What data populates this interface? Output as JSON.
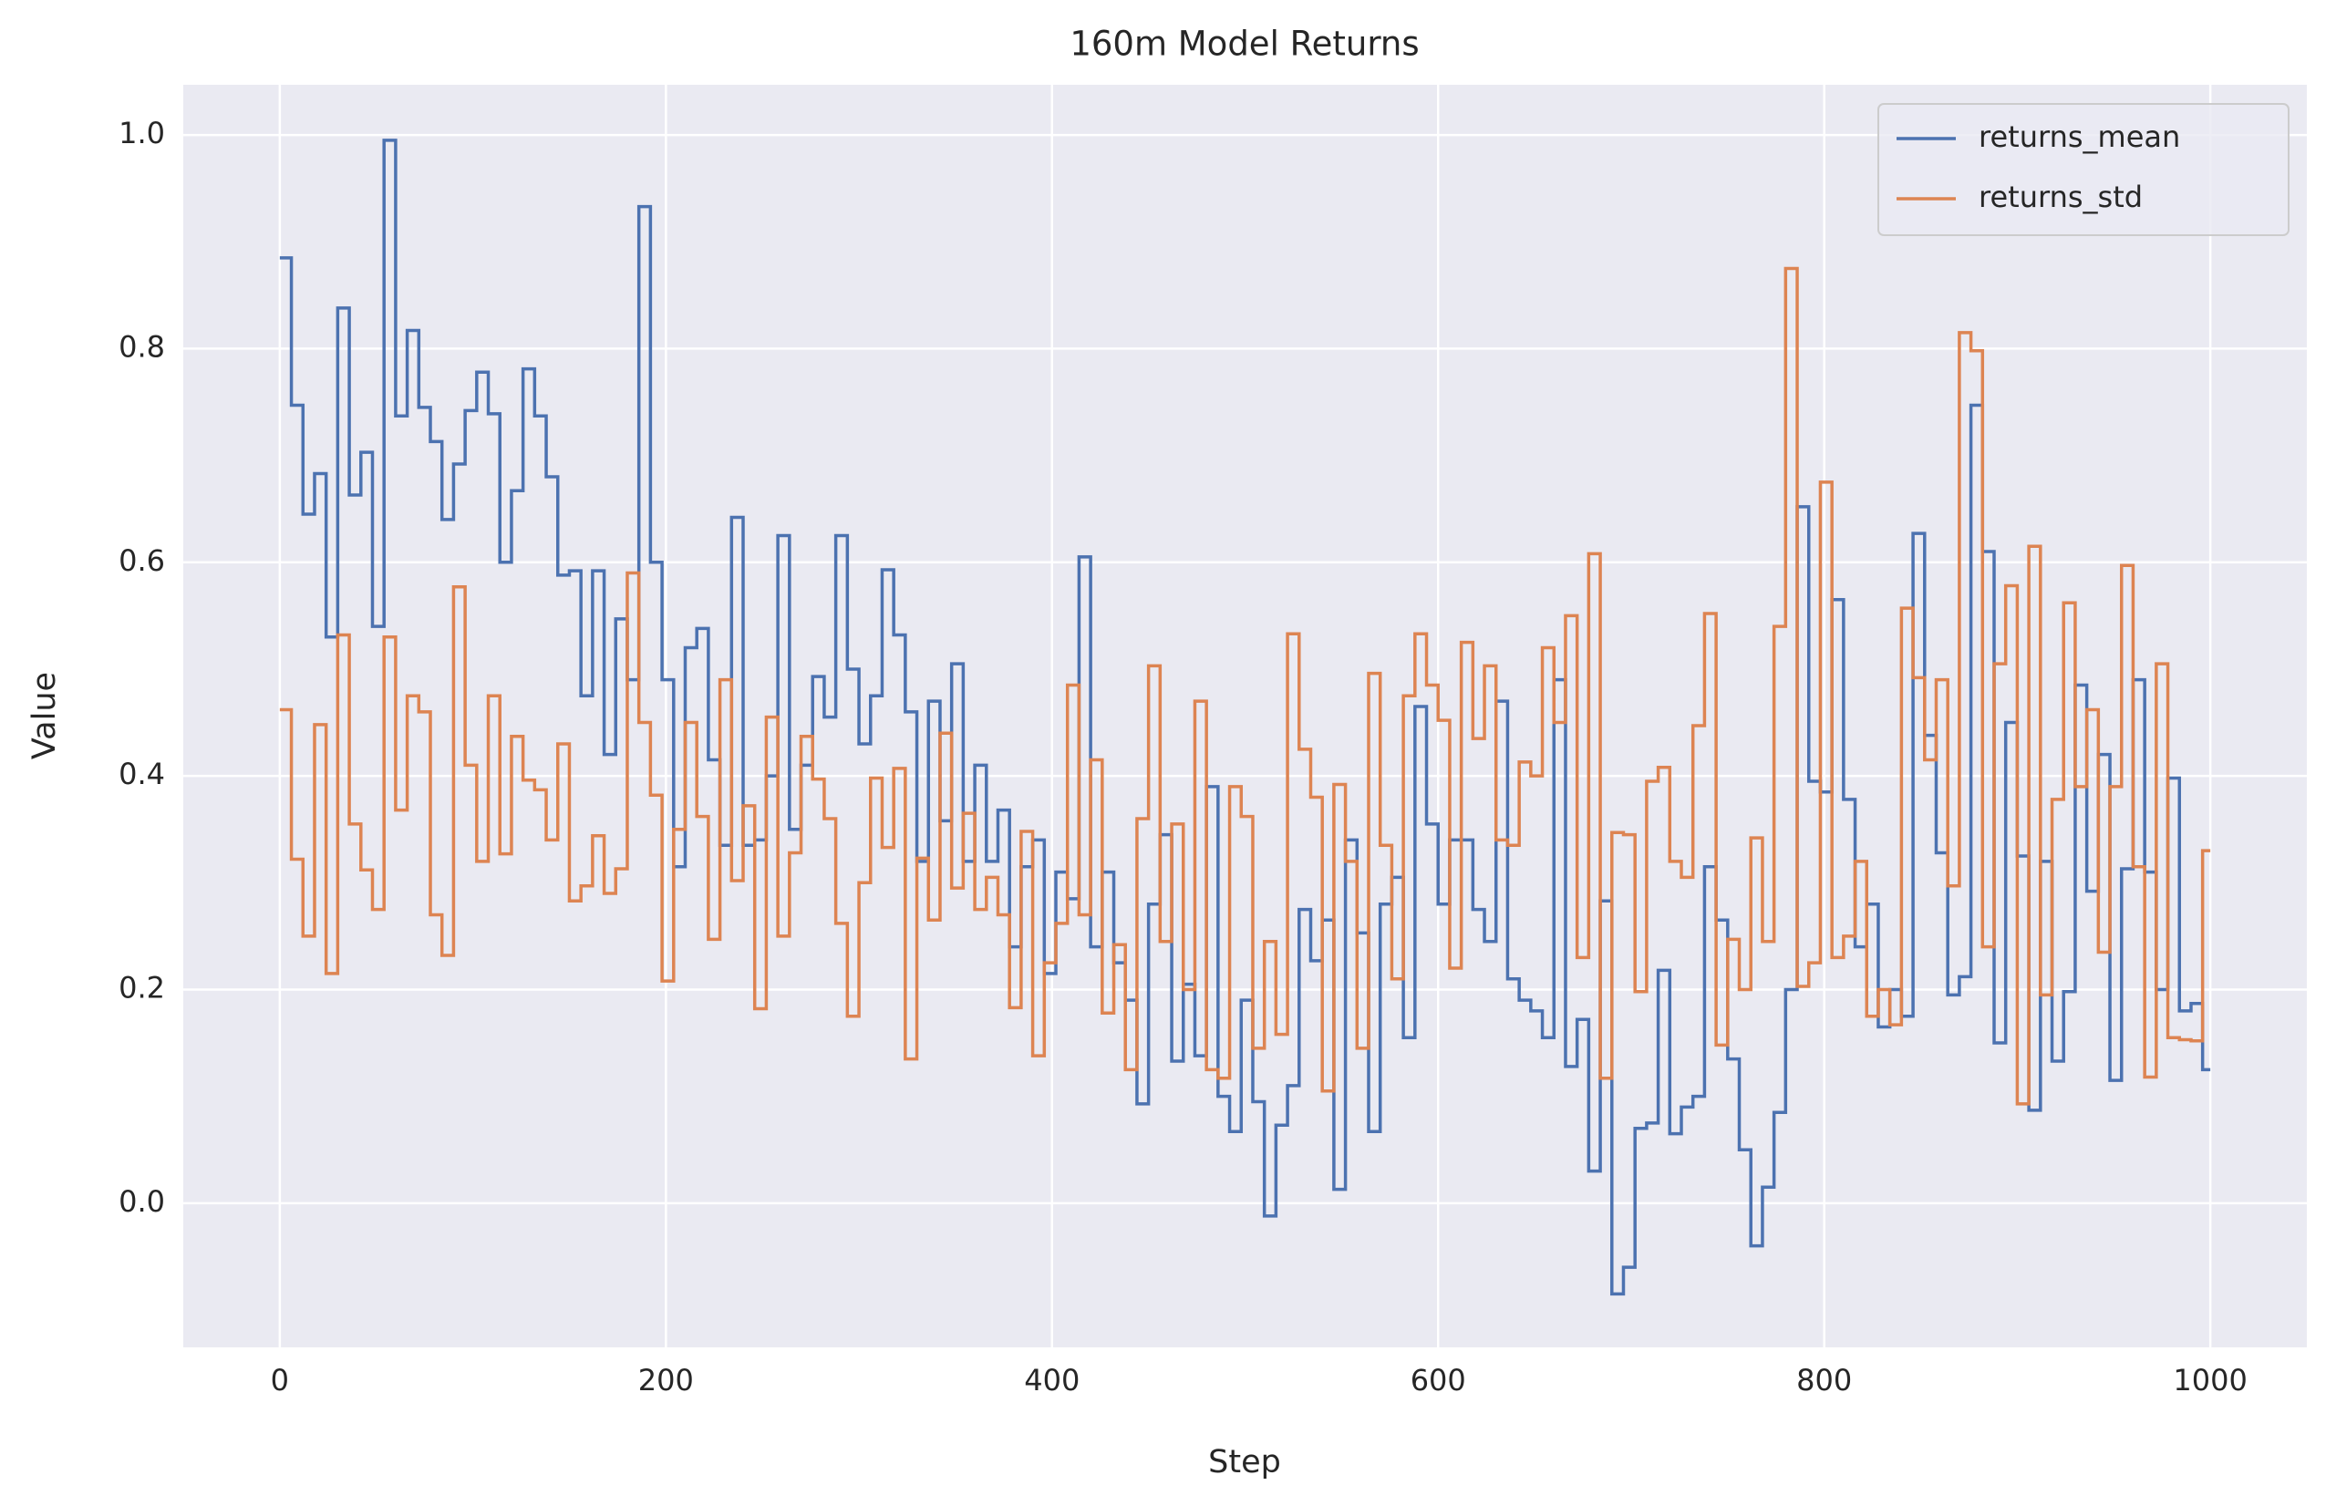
{
  "chart_data": {
    "type": "line",
    "drawstyle": "steps-post",
    "title": "160m Model Returns",
    "x_label": "Step",
    "y_label": "Value",
    "xlim": [
      -50,
      1050
    ],
    "ylim": [
      -0.135,
      1.047
    ],
    "xticks": [
      0,
      200,
      400,
      600,
      800,
      1000
    ],
    "yticks": [
      {
        "value": 0,
        "label": "0.0"
      },
      0.2,
      0.4,
      0.6,
      0.8,
      {
        "value": 1,
        "label": "1.0"
      }
    ],
    "grid": true,
    "legend": "upper right",
    "x": [
      0,
      6,
      12,
      18,
      24,
      30,
      36,
      42,
      48,
      54,
      60,
      66,
      72,
      78,
      84,
      90,
      96,
      102,
      108,
      114,
      120,
      126,
      132,
      138,
      144,
      150,
      156,
      162,
      168,
      174,
      180,
      186,
      192,
      198,
      204,
      210,
      216,
      222,
      228,
      234,
      240,
      246,
      252,
      258,
      264,
      270,
      276,
      282,
      288,
      294,
      300,
      306,
      312,
      318,
      324,
      330,
      336,
      342,
      348,
      354,
      360,
      366,
      372,
      378,
      384,
      390,
      396,
      402,
      408,
      414,
      420,
      426,
      432,
      438,
      444,
      450,
      456,
      462,
      468,
      474,
      480,
      486,
      492,
      498,
      504,
      510,
      516,
      522,
      528,
      534,
      540,
      546,
      552,
      558,
      564,
      570,
      576,
      582,
      588,
      594,
      600,
      606,
      612,
      618,
      624,
      630,
      636,
      642,
      648,
      654,
      660,
      666,
      672,
      678,
      684,
      690,
      696,
      702,
      708,
      714,
      720,
      726,
      732,
      738,
      744,
      750,
      756,
      762,
      768,
      774,
      780,
      786,
      792,
      798,
      804,
      810,
      816,
      822,
      828,
      834,
      840,
      846,
      852,
      858,
      864,
      870,
      876,
      882,
      888,
      894,
      900,
      906,
      912,
      918,
      924,
      930,
      936,
      942,
      948,
      954,
      960,
      966,
      972,
      978,
      984,
      990,
      996,
      1000
    ],
    "series": [
      {
        "name": "returns_mean",
        "color": "#4c72b0",
        "values": [
          0.885,
          0.747,
          0.645,
          0.683,
          0.53,
          0.838,
          0.663,
          0.703,
          0.54,
          0.995,
          0.737,
          0.817,
          0.745,
          0.713,
          0.64,
          0.692,
          0.742,
          0.778,
          0.739,
          0.6,
          0.667,
          0.781,
          0.737,
          0.68,
          0.588,
          0.592,
          0.475,
          0.592,
          0.42,
          0.547,
          0.49,
          0.933,
          0.6,
          0.49,
          0.315,
          0.52,
          0.538,
          0.415,
          0.335,
          0.642,
          0.335,
          0.34,
          0.4,
          0.625,
          0.35,
          0.41,
          0.493,
          0.455,
          0.625,
          0.5,
          0.43,
          0.475,
          0.593,
          0.532,
          0.46,
          0.32,
          0.47,
          0.358,
          0.505,
          0.32,
          0.41,
          0.32,
          0.368,
          0.24,
          0.315,
          0.34,
          0.215,
          0.31,
          0.285,
          0.605,
          0.24,
          0.31,
          0.225,
          0.19,
          0.093,
          0.28,
          0.345,
          0.133,
          0.205,
          0.138,
          0.39,
          0.1,
          0.067,
          0.19,
          0.095,
          -0.012,
          0.073,
          0.11,
          0.275,
          0.227,
          0.265,
          0.013,
          0.34,
          0.253,
          0.067,
          0.28,
          0.305,
          0.155,
          0.465,
          0.355,
          0.28,
          0.34,
          0.34,
          0.275,
          0.245,
          0.47,
          0.21,
          0.19,
          0.18,
          0.155,
          0.49,
          0.128,
          0.172,
          0.03,
          0.283,
          -0.085,
          -0.06,
          0.07,
          0.075,
          0.218,
          0.065,
          0.09,
          0.1,
          0.315,
          0.265,
          0.135,
          0.05,
          -0.04,
          0.015,
          0.085,
          0.2,
          0.652,
          0.395,
          0.385,
          0.565,
          0.378,
          0.24,
          0.28,
          0.165,
          0.2,
          0.175,
          0.627,
          0.438,
          0.328,
          0.195,
          0.212,
          0.747,
          0.61,
          0.15,
          0.45,
          0.325,
          0.087,
          0.32,
          0.133,
          0.198,
          0.485,
          0.292,
          0.42,
          0.115,
          0.313,
          0.49,
          0.31,
          0.2,
          0.398,
          0.18,
          0.187,
          0.125,
          0.125
        ]
      },
      {
        "name": "returns_std",
        "color": "#dd8452",
        "values": [
          0.462,
          0.322,
          0.25,
          0.448,
          0.215,
          0.532,
          0.355,
          0.312,
          0.275,
          0.53,
          0.368,
          0.475,
          0.46,
          0.27,
          0.232,
          0.577,
          0.41,
          0.32,
          0.475,
          0.327,
          0.437,
          0.396,
          0.387,
          0.34,
          0.43,
          0.283,
          0.297,
          0.344,
          0.29,
          0.313,
          0.59,
          0.45,
          0.382,
          0.208,
          0.35,
          0.45,
          0.362,
          0.247,
          0.49,
          0.302,
          0.372,
          0.182,
          0.455,
          0.25,
          0.328,
          0.437,
          0.397,
          0.36,
          0.262,
          0.175,
          0.3,
          0.398,
          0.333,
          0.407,
          0.135,
          0.323,
          0.265,
          0.44,
          0.295,
          0.365,
          0.275,
          0.305,
          0.27,
          0.183,
          0.348,
          0.138,
          0.225,
          0.262,
          0.485,
          0.27,
          0.415,
          0.178,
          0.242,
          0.125,
          0.36,
          0.503,
          0.245,
          0.355,
          0.2,
          0.47,
          0.125,
          0.117,
          0.39,
          0.362,
          0.145,
          0.245,
          0.158,
          0.533,
          0.425,
          0.38,
          0.105,
          0.392,
          0.32,
          0.145,
          0.496,
          0.335,
          0.21,
          0.475,
          0.533,
          0.485,
          0.452,
          0.22,
          0.525,
          0.435,
          0.503,
          0.34,
          0.335,
          0.413,
          0.4,
          0.52,
          0.45,
          0.55,
          0.23,
          0.608,
          0.117,
          0.347,
          0.345,
          0.198,
          0.395,
          0.408,
          0.32,
          0.305,
          0.447,
          0.552,
          0.148,
          0.247,
          0.2,
          0.342,
          0.245,
          0.54,
          0.875,
          0.203,
          0.225,
          0.675,
          0.23,
          0.25,
          0.32,
          0.175,
          0.2,
          0.167,
          0.557,
          0.492,
          0.415,
          0.49,
          0.297,
          0.815,
          0.798,
          0.24,
          0.505,
          0.578,
          0.093,
          0.615,
          0.195,
          0.378,
          0.562,
          0.39,
          0.462,
          0.235,
          0.39,
          0.597,
          0.315,
          0.118,
          0.505,
          0.155,
          0.153,
          0.152,
          0.33,
          0.33
        ]
      }
    ]
  }
}
